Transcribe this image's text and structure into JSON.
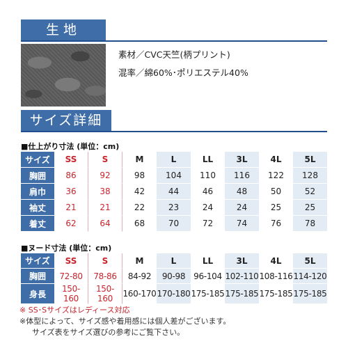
{
  "fabric": {
    "header": "生地",
    "material": "素材／CVC天竺(柄プリント)",
    "blend": "混率／綿60%･ポリエステル40%"
  },
  "size_detail": {
    "header": "サイズ詳細",
    "finished_table": {
      "title": "■仕上がり寸法 (単位：cm)",
      "header_label": "サイズ",
      "sizes": [
        "SS",
        "S",
        "M",
        "L",
        "LL",
        "3L",
        "4L",
        "5L"
      ],
      "rows": [
        {
          "label": "胸囲",
          "values": [
            "86",
            "92",
            "98",
            "104",
            "110",
            "116",
            "122",
            "128"
          ]
        },
        {
          "label": "肩巾",
          "values": [
            "36",
            "38",
            "42",
            "44",
            "46",
            "48",
            "50",
            "52"
          ]
        },
        {
          "label": "袖丈",
          "values": [
            "21",
            "21",
            "22",
            "23",
            "24",
            "24",
            "25",
            "25"
          ]
        },
        {
          "label": "着丈",
          "values": [
            "62",
            "64",
            "68",
            "70",
            "72",
            "74",
            "76",
            "78"
          ]
        }
      ]
    },
    "nude_table": {
      "title": "■ヌード寸法 (単位：cm)",
      "header_label": "サイズ",
      "sizes": [
        "SS",
        "S",
        "M",
        "L",
        "LL",
        "3L",
        "4L",
        "5L"
      ],
      "rows": [
        {
          "label": "胸囲",
          "values": [
            "72-80",
            "78-86",
            "84-92",
            "90-98",
            "96-104",
            "102-110",
            "108-116",
            "114-120"
          ]
        },
        {
          "label": "身長",
          "values": [
            "150-160",
            "150-160",
            "160-170",
            "170-180",
            "175-185",
            "175-185",
            "175-185",
            "175-185"
          ]
        }
      ]
    },
    "notes": [
      "※ SS･Sサイズはレディース対応",
      "※体型によって、サイズ感や着用感には個人差がございます。",
      "サイズ表をサイズ選びの参考にご覧下さい。"
    ]
  },
  "colors": {
    "header_blue": "#3f6da8",
    "ladies_red": "#c8242d",
    "alt_column": "#e3ebf4"
  }
}
